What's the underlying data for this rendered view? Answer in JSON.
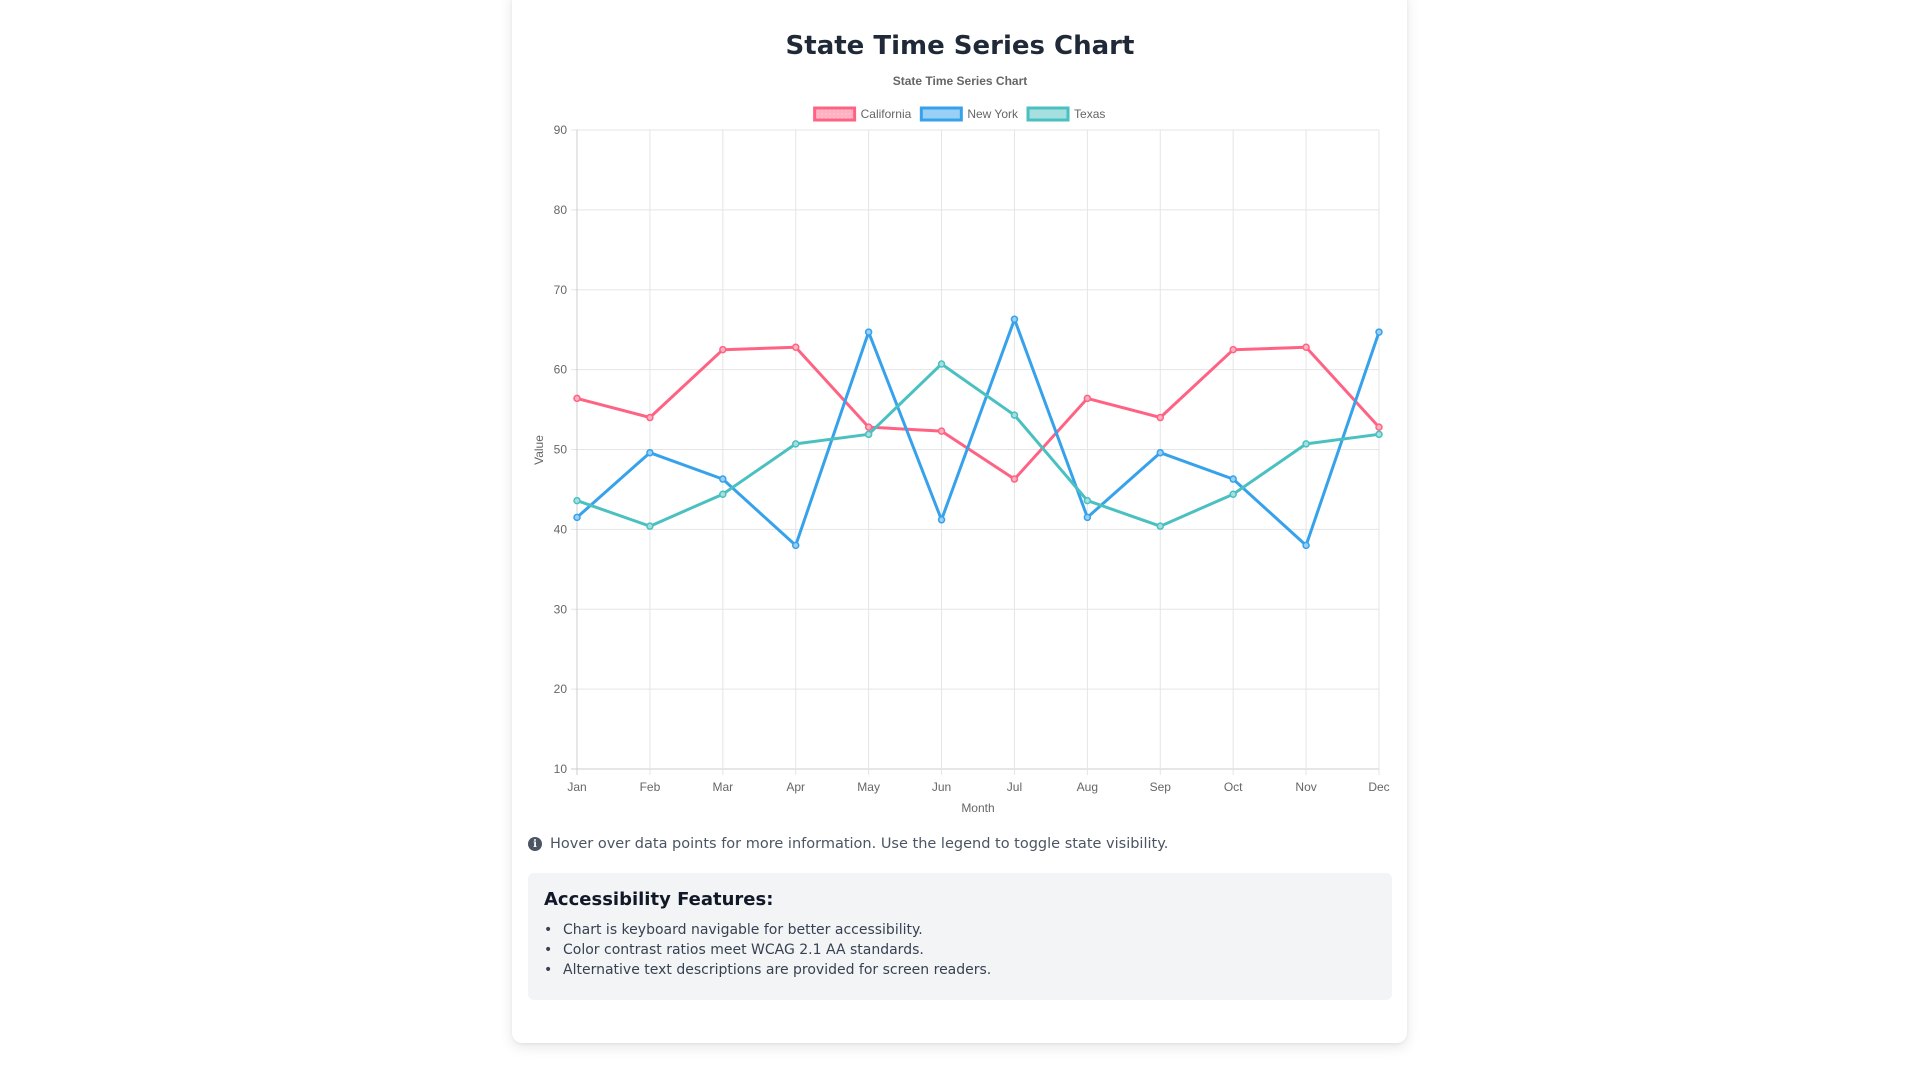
{
  "page": {
    "title": "State Time Series Chart"
  },
  "chart_data": {
    "type": "line",
    "title": "State Time Series Chart",
    "xlabel": "Month",
    "ylabel": "Value",
    "x": [
      "Jan",
      "Feb",
      "Mar",
      "Apr",
      "May",
      "Jun",
      "Jul",
      "Aug",
      "Sep",
      "Oct",
      "Nov",
      "Dec"
    ],
    "ylim": [
      10,
      90
    ],
    "yticks": [
      10,
      20,
      30,
      40,
      50,
      60,
      70,
      80,
      90
    ],
    "grid": true,
    "legend_position": "top-center",
    "series": [
      {
        "name": "California",
        "color": "#ff6384",
        "fill": "#ffb1c1",
        "values": [
          56.4,
          54.0,
          62.5,
          62.8,
          52.8,
          52.3,
          46.3,
          56.4,
          54.0,
          62.5,
          62.8,
          52.8
        ]
      },
      {
        "name": "New York",
        "color": "#36a2eb",
        "fill": "#9ad0f5",
        "values": [
          41.5,
          49.6,
          46.3,
          38.0,
          64.7,
          41.2,
          66.3,
          41.5,
          49.6,
          46.3,
          38.0,
          64.7
        ]
      },
      {
        "name": "Texas",
        "color": "#4bc0c0",
        "fill": "#a5dfdf",
        "values": [
          43.6,
          40.4,
          44.4,
          50.7,
          51.9,
          60.7,
          54.3,
          43.6,
          40.4,
          44.4,
          50.7,
          51.9
        ]
      }
    ]
  },
  "info": {
    "icon": "info-circle-icon",
    "text": "Hover over data points for more information. Use the legend to toggle state visibility."
  },
  "accessibility": {
    "title": "Accessibility Features:",
    "items": [
      "Chart is keyboard navigable for better accessibility.",
      "Color contrast ratios meet WCAG 2.1 AA standards.",
      "Alternative text descriptions are provided for screen readers."
    ]
  }
}
